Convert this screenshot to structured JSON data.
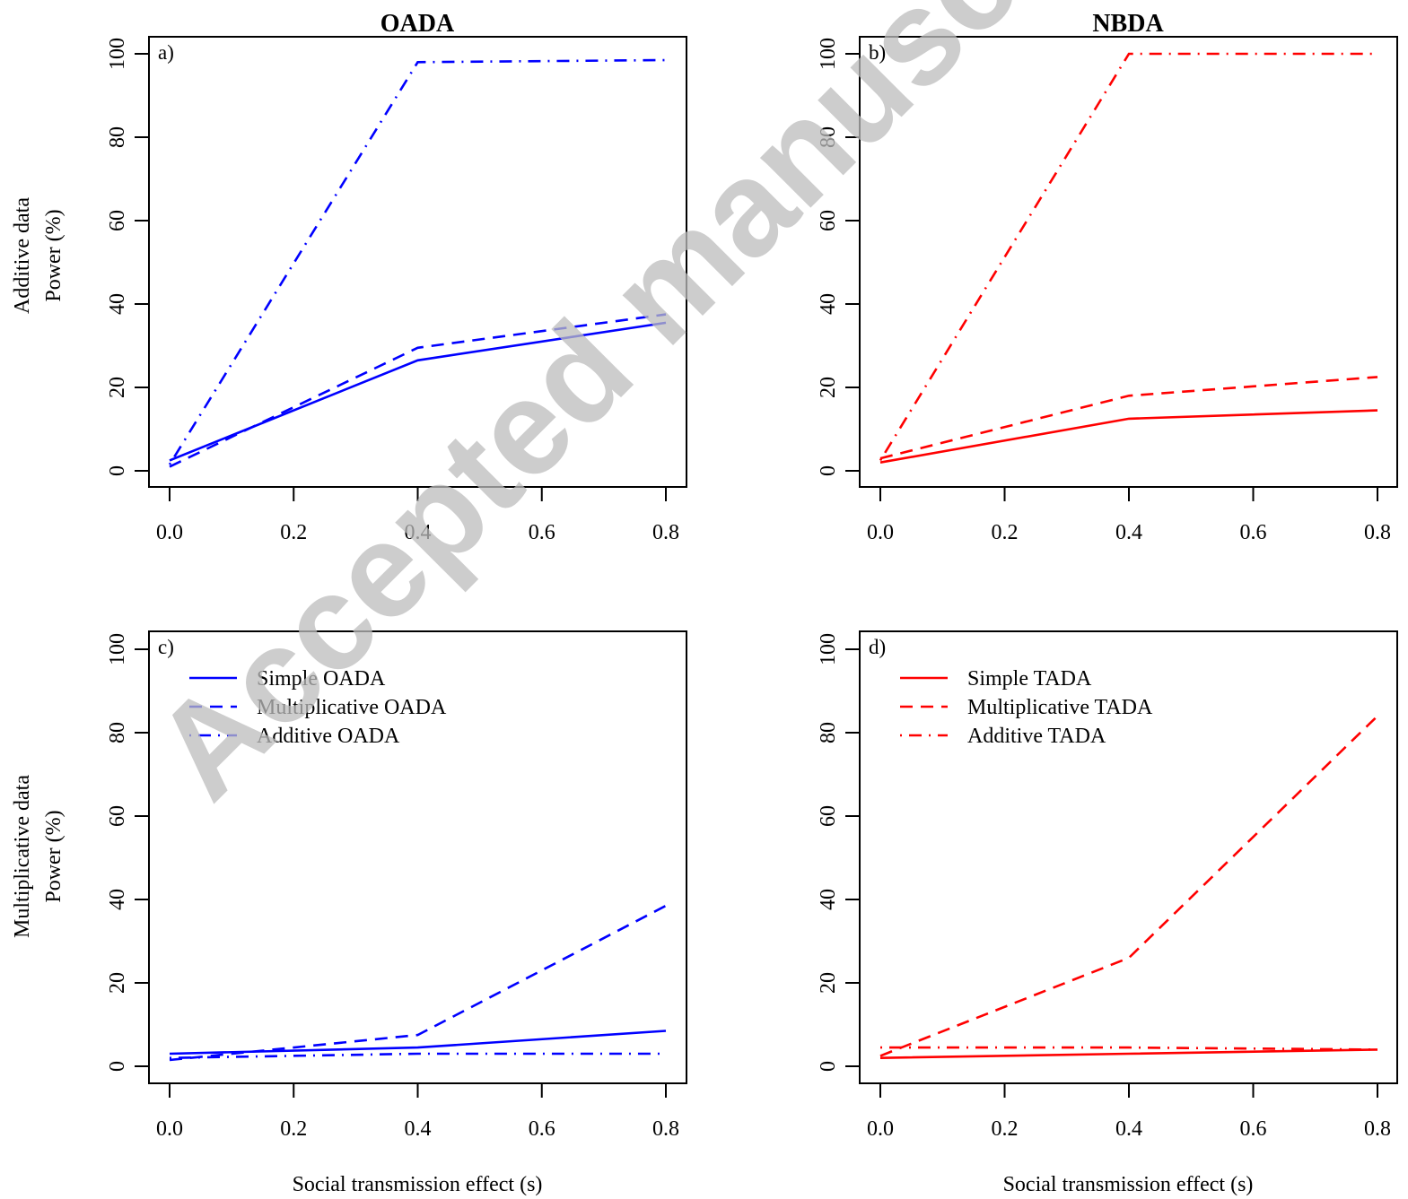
{
  "figure": {
    "panel_titles": {
      "left": "OADA",
      "right": "NBDA"
    },
    "row_titles": {
      "top": [
        "Additive data",
        "Power (%)"
      ],
      "bottom": [
        "Multiplicative data",
        "Power (%)"
      ]
    },
    "xlabel": "Social transmission effect (s)",
    "watermark": "Accepted manuscript",
    "colors": {
      "oada": "#0000ff",
      "nbda": "#ff0000"
    }
  },
  "chart_data": [
    {
      "type": "line",
      "panel": "a)",
      "title": "OADA",
      "xlabel": "",
      "ylabel": "Additive data Power (%)",
      "x": [
        0.0,
        0.4,
        0.8
      ],
      "xticks": [
        "0.0",
        "0.2",
        "0.4",
        "0.6",
        "0.8"
      ],
      "yticks": [
        "0",
        "20",
        "40",
        "60",
        "80",
        "100"
      ],
      "xlim": [
        0.0,
        0.8
      ],
      "ylim": [
        0,
        100
      ],
      "grid": false,
      "color": "#0000ff",
      "series": [
        {
          "linestyle": "solid",
          "values": [
            2.5,
            26.5,
            35.5
          ]
        },
        {
          "linestyle": "dashed",
          "values": [
            1.0,
            29.5,
            37.5
          ]
        },
        {
          "linestyle": "dotdash",
          "values": [
            1.5,
            98.0,
            98.5
          ]
        }
      ]
    },
    {
      "type": "line",
      "panel": "b)",
      "title": "NBDA",
      "xlabel": "",
      "ylabel": "",
      "x": [
        0.0,
        0.4,
        0.8
      ],
      "xticks": [
        "0.0",
        "0.2",
        "0.4",
        "0.6",
        "0.8"
      ],
      "yticks": [
        "0",
        "20",
        "40",
        "60",
        "80",
        "100"
      ],
      "xlim": [
        0.0,
        0.8
      ],
      "ylim": [
        0,
        100
      ],
      "grid": false,
      "color": "#ff0000",
      "series": [
        {
          "linestyle": "solid",
          "values": [
            2.0,
            12.5,
            14.5
          ]
        },
        {
          "linestyle": "dashed",
          "values": [
            3.0,
            18.0,
            22.5
          ]
        },
        {
          "linestyle": "dotdash",
          "values": [
            2.5,
            100.0,
            100.0
          ]
        }
      ]
    },
    {
      "type": "line",
      "panel": "c)",
      "title": "",
      "xlabel": "Social transmission effect (s)",
      "ylabel": "Multiplicative data Power (%)",
      "x": [
        0.0,
        0.4,
        0.8
      ],
      "xticks": [
        "0.0",
        "0.2",
        "0.4",
        "0.6",
        "0.8"
      ],
      "yticks": [
        "0",
        "20",
        "40",
        "60",
        "80",
        "100"
      ],
      "xlim": [
        0.0,
        0.8
      ],
      "ylim": [
        0,
        100
      ],
      "grid": false,
      "color": "#0000ff",
      "legend_position": "top-left",
      "series": [
        {
          "name": "Simple OADA",
          "linestyle": "solid",
          "values": [
            3.0,
            4.5,
            8.5
          ]
        },
        {
          "name": "Multiplicative OADA",
          "linestyle": "dashed",
          "values": [
            1.5,
            7.5,
            38.5
          ]
        },
        {
          "name": "Additive OADA",
          "linestyle": "dotdash",
          "values": [
            2.0,
            3.0,
            3.0
          ]
        }
      ]
    },
    {
      "type": "line",
      "panel": "d)",
      "title": "",
      "xlabel": "Social transmission effect (s)",
      "ylabel": "",
      "x": [
        0.0,
        0.4,
        0.8
      ],
      "xticks": [
        "0.0",
        "0.2",
        "0.4",
        "0.6",
        "0.8"
      ],
      "yticks": [
        "0",
        "20",
        "40",
        "60",
        "80",
        "100"
      ],
      "xlim": [
        0.0,
        0.8
      ],
      "ylim": [
        0,
        100
      ],
      "grid": false,
      "color": "#ff0000",
      "legend_position": "top-left",
      "series": [
        {
          "name": "Simple TADA",
          "linestyle": "solid",
          "values": [
            2.0,
            3.0,
            4.0
          ]
        },
        {
          "name": "Multiplicative TADA",
          "linestyle": "dashed",
          "values": [
            2.5,
            26.0,
            84.0
          ]
        },
        {
          "name": "Additive TADA",
          "linestyle": "dotdash",
          "values": [
            4.5,
            4.5,
            4.0
          ]
        }
      ]
    }
  ]
}
